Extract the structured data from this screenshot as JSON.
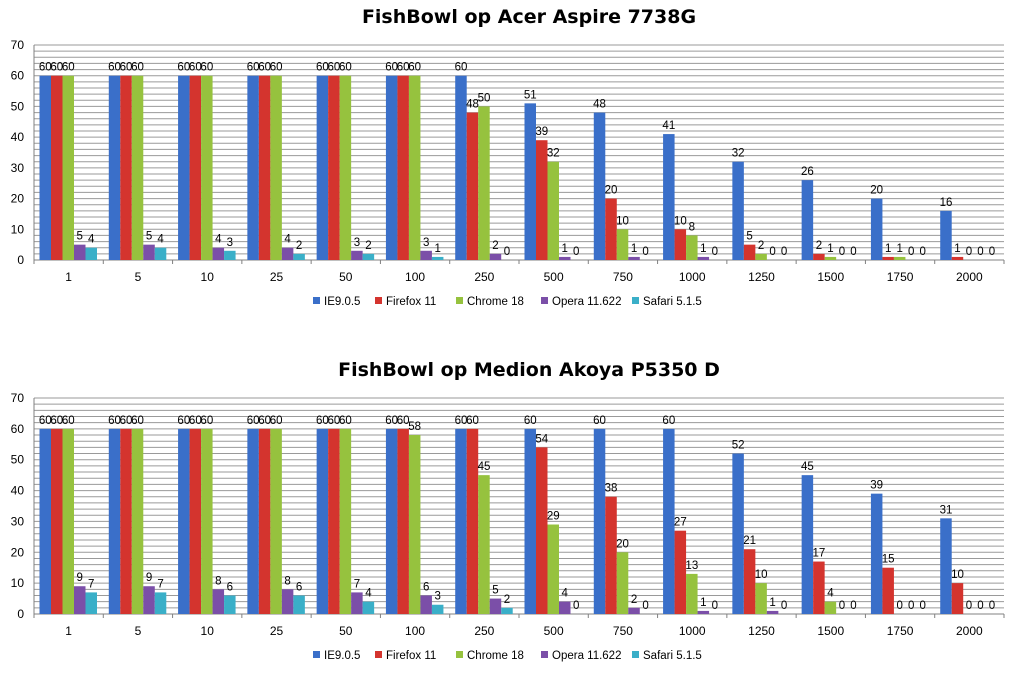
{
  "chart_data": [
    {
      "type": "bar",
      "title": "FishBowl op Acer Aspire 7738G",
      "xlabel": "",
      "ylabel": "",
      "ylim": [
        0,
        70
      ],
      "yticks": [
        0,
        10,
        20,
        30,
        40,
        50,
        60,
        70
      ],
      "grid": true,
      "legend_position": "bottom",
      "categories": [
        "1",
        "5",
        "10",
        "25",
        "50",
        "100",
        "250",
        "500",
        "750",
        "1000",
        "1250",
        "1500",
        "1750",
        "2000"
      ],
      "series": [
        {
          "name": "IE9.0.5",
          "color": "#3A6FC9",
          "values": [
            60,
            60,
            60,
            60,
            60,
            60,
            60,
            51,
            48,
            41,
            32,
            26,
            20,
            16
          ]
        },
        {
          "name": "Firefox 11",
          "color": "#D4342E",
          "values": [
            60,
            60,
            60,
            60,
            60,
            60,
            48,
            39,
            20,
            10,
            5,
            2,
            1,
            1
          ]
        },
        {
          "name": "Chrome 18",
          "color": "#96C23E",
          "values": [
            60,
            60,
            60,
            60,
            60,
            60,
            50,
            32,
            10,
            8,
            2,
            1,
            1,
            0
          ]
        },
        {
          "name": "Opera 11.622",
          "color": "#7B4FA8",
          "values": [
            5,
            5,
            4,
            4,
            3,
            3,
            2,
            1,
            1,
            1,
            0,
            0,
            0,
            0
          ]
        },
        {
          "name": "Safari 5.1.5",
          "color": "#3AAFC8",
          "values": [
            4,
            4,
            3,
            2,
            2,
            1,
            0,
            0,
            0,
            0,
            0,
            0,
            0,
            0
          ]
        }
      ]
    },
    {
      "type": "bar",
      "title": "FishBowl op Medion Akoya P5350 D",
      "xlabel": "",
      "ylabel": "",
      "ylim": [
        0,
        70
      ],
      "yticks": [
        0,
        10,
        20,
        30,
        40,
        50,
        60,
        70
      ],
      "grid": true,
      "legend_position": "bottom",
      "categories": [
        "1",
        "5",
        "10",
        "25",
        "50",
        "100",
        "250",
        "500",
        "750",
        "1000",
        "1250",
        "1500",
        "1750",
        "2000"
      ],
      "series": [
        {
          "name": "IE9.0.5",
          "color": "#3A6FC9",
          "values": [
            60,
            60,
            60,
            60,
            60,
            60,
            60,
            60,
            60,
            60,
            52,
            45,
            39,
            31
          ]
        },
        {
          "name": "Firefox 11",
          "color": "#D4342E",
          "values": [
            60,
            60,
            60,
            60,
            60,
            60,
            60,
            54,
            38,
            27,
            21,
            17,
            15,
            10
          ]
        },
        {
          "name": "Chrome 18",
          "color": "#96C23E",
          "values": [
            60,
            60,
            60,
            60,
            60,
            58,
            45,
            29,
            20,
            13,
            10,
            4,
            0,
            0
          ]
        },
        {
          "name": "Opera 11.622",
          "color": "#7B4FA8",
          "values": [
            9,
            9,
            8,
            8,
            7,
            6,
            5,
            4,
            2,
            1,
            1,
            0,
            0,
            0
          ]
        },
        {
          "name": "Safari 5.1.5",
          "color": "#3AAFC8",
          "values": [
            7,
            7,
            6,
            6,
            4,
            3,
            2,
            0,
            0,
            0,
            0,
            0,
            0,
            0
          ]
        }
      ]
    }
  ]
}
